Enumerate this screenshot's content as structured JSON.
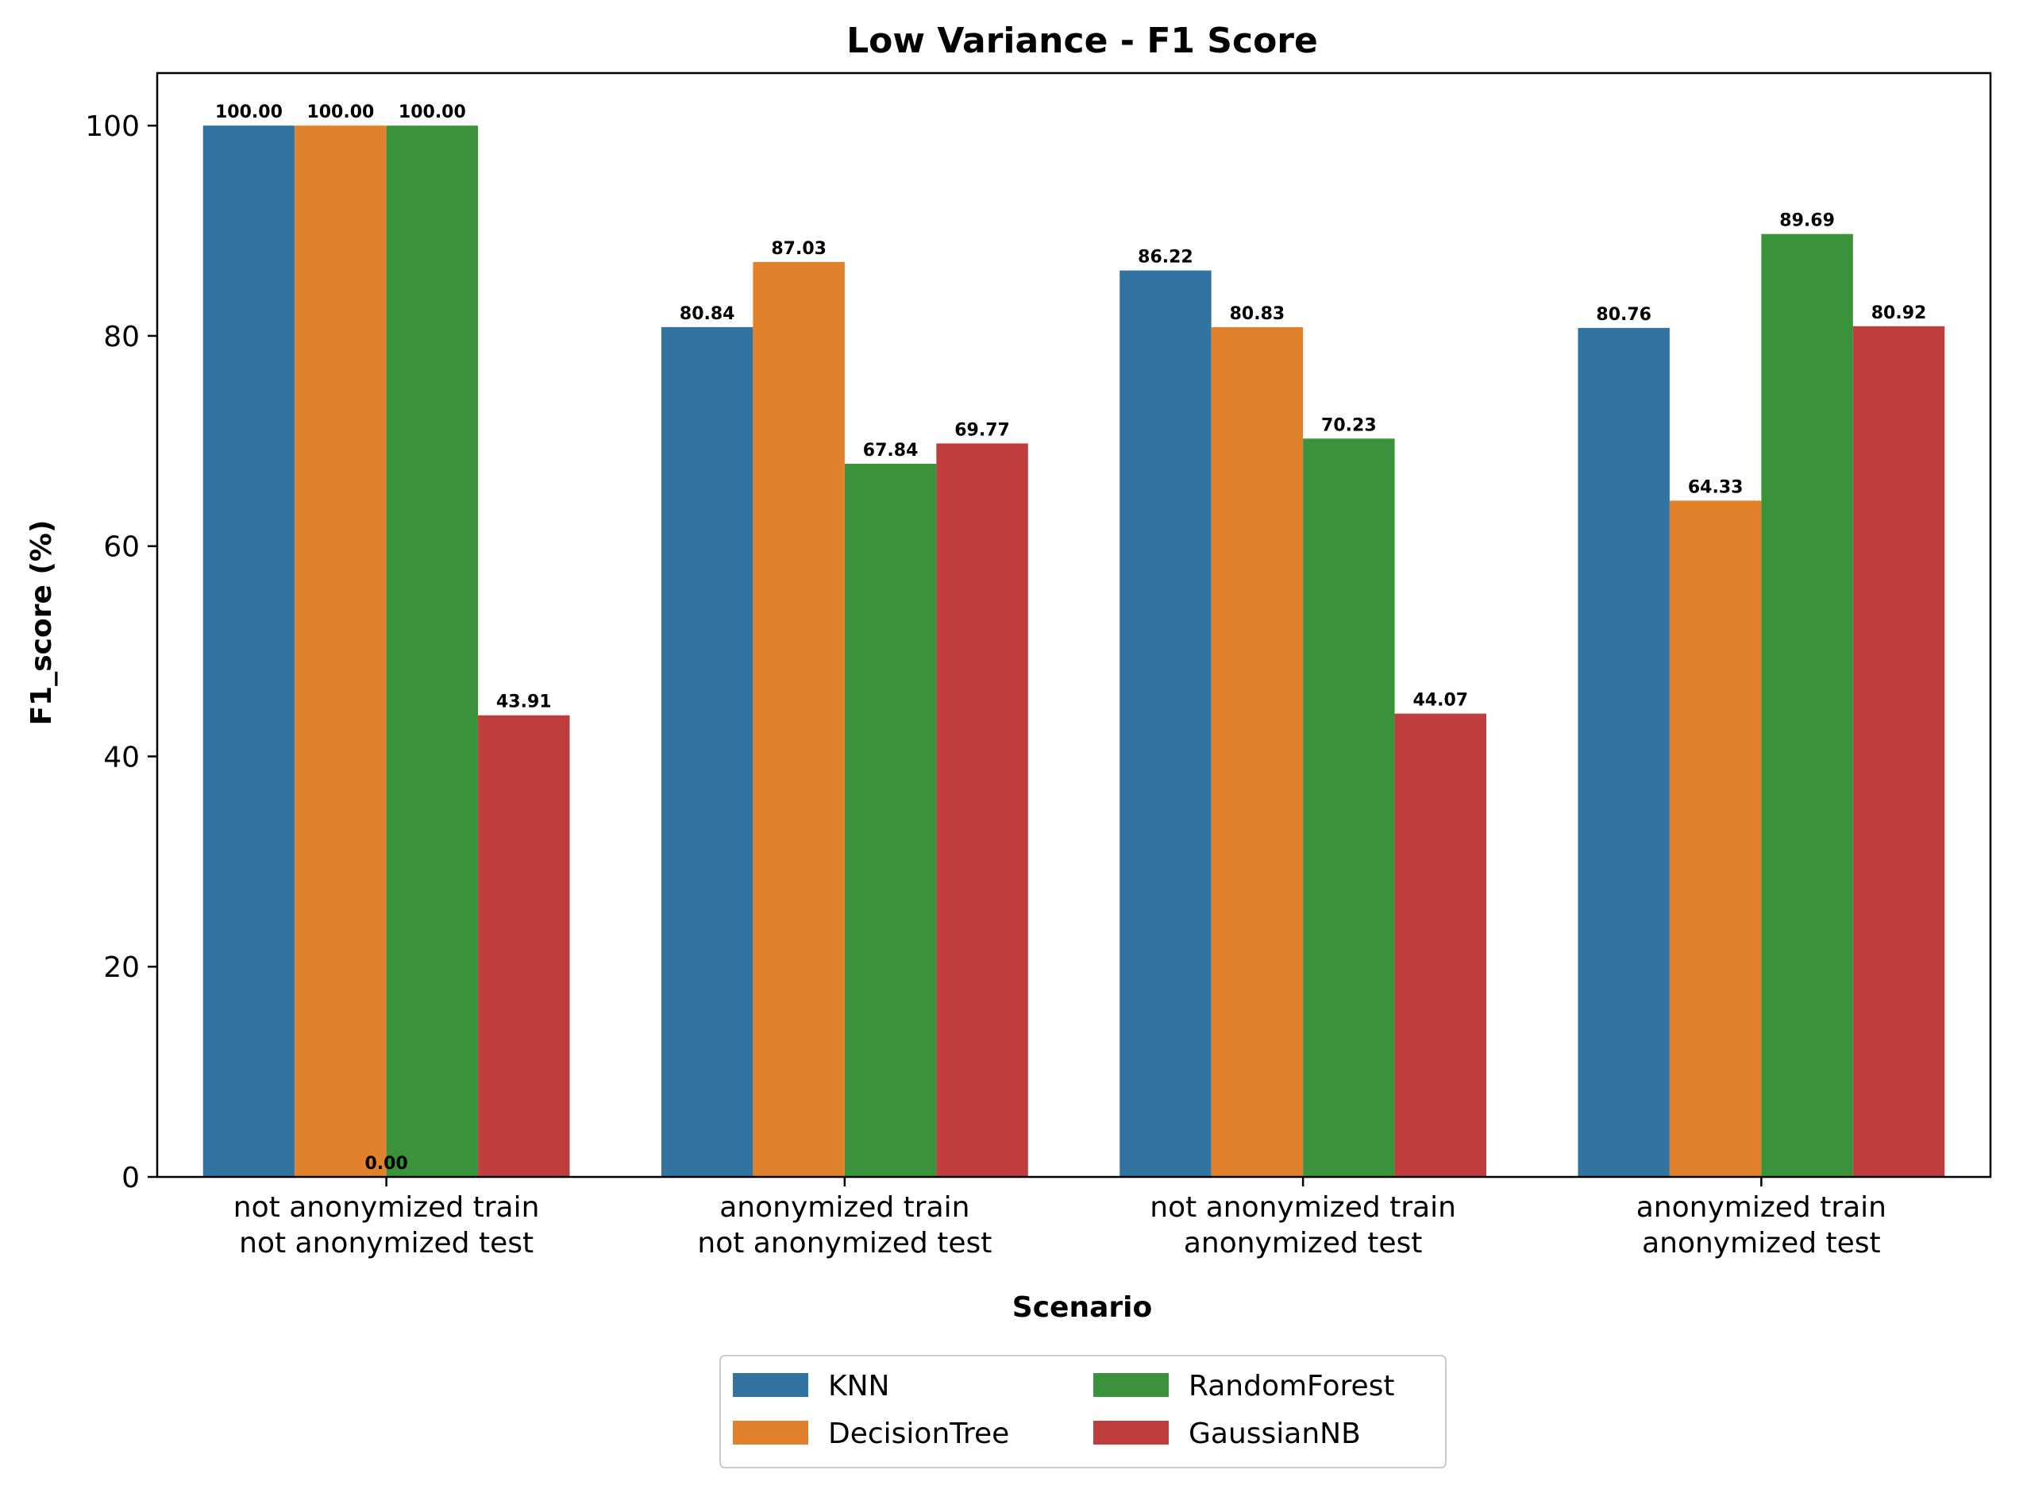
{
  "chart_data": {
    "type": "bar",
    "title": "Low Variance - F1 Score",
    "xlabel": "Scenario",
    "ylabel": "F1_score (%)",
    "ylim": [
      0,
      105
    ],
    "yticks": [
      0,
      20,
      40,
      60,
      80,
      100
    ],
    "grid": false,
    "legend_position": "bottom-center",
    "categories": [
      [
        "not anonymized train",
        "not anonymized test"
      ],
      [
        "anonymized train",
        "not anonymized test"
      ],
      [
        "not anonymized train",
        "anonymized test"
      ],
      [
        "anonymized train",
        "anonymized test"
      ]
    ],
    "series": [
      {
        "name": "KNN",
        "color": "#3274a1",
        "values": [
          100.0,
          80.84,
          86.22,
          80.76
        ]
      },
      {
        "name": "DecisionTree",
        "color": "#e1812c",
        "values": [
          100.0,
          87.03,
          80.83,
          64.33
        ]
      },
      {
        "name": "RandomForest",
        "color": "#3a923a",
        "values": [
          100.0,
          67.84,
          70.23,
          89.69
        ]
      },
      {
        "name": "GaussianNB",
        "color": "#c03d3e",
        "values": [
          43.91,
          69.77,
          44.07,
          80.92
        ]
      }
    ],
    "annotations": [
      {
        "text": "0.00",
        "category": 0
      }
    ]
  }
}
